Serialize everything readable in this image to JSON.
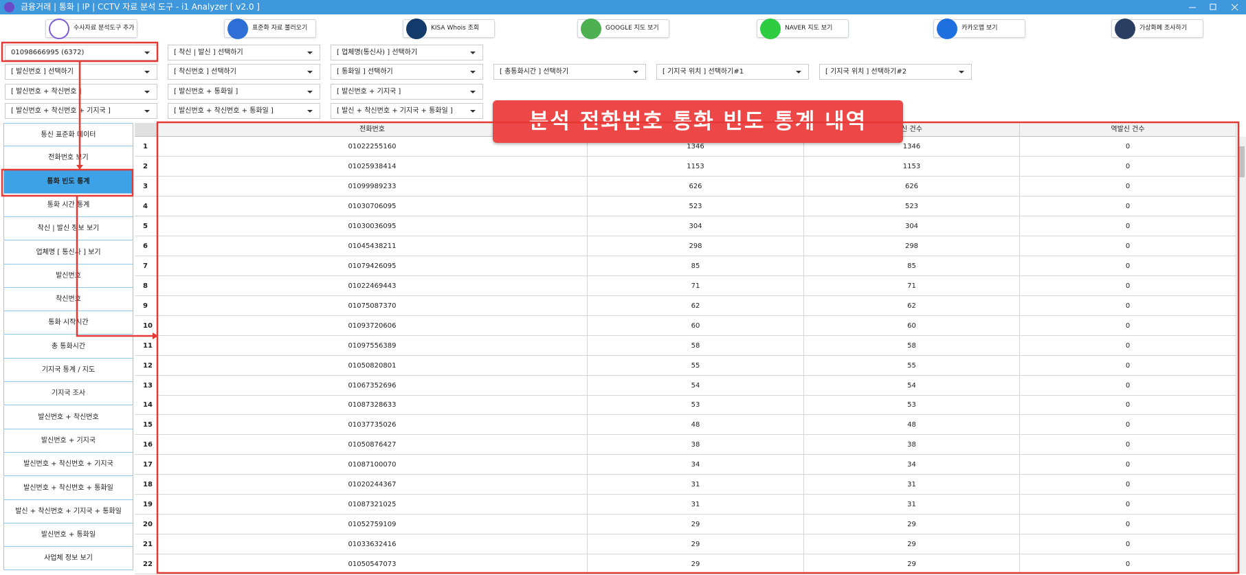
{
  "window_title": "금융거래 | 통화 | IP | CCTV 자료 분석 도구 - i1 Analyzer [ v2.0 ]",
  "toolbar": [
    "수사자료 분석도구 추가",
    "표준화 자료 불러오기",
    "KISA Whois 조회",
    "GOOGLE 지도 보기",
    "NAVER 지도 보기",
    "카카오맵 보기",
    "가상화폐 조사하기"
  ],
  "dropdowns": [
    [
      "01098666995 (6372)",
      "[ 착신 | 발신 ] 선택하기",
      "[ 업체명(통신사) ] 선택하기"
    ],
    [
      "[ 발신번호 ] 선택하기",
      "[ 착신번호 ] 선택하기",
      "[ 통화일 ] 선택하기",
      "[ 총통화시간 ] 선택하기",
      "[ 기지국 위치 ] 선택하기#1",
      "[ 기지국 위치 ] 선택하기#2"
    ],
    [
      "[ 발신번호 + 착신번호 ]",
      "[ 발신번호 + 통화일 ]",
      "[ 발신번호 + 기지국 ]"
    ],
    [
      "[ 발신번호 + 착신번호 + 기지국 ]",
      "[ 발신번호 + 착신번호 + 통화일 ]",
      "[ 발신 + 착신번호 + 기지국 + 통화일 ]"
    ]
  ],
  "sidebar": [
    "통신 표준화 데이터",
    "전화번호 보기",
    "통화 빈도 통계",
    "통화 시간 통계",
    "착신 | 발신 정보 보기",
    "업체명 [ 통신사 ] 보기",
    "발신번호",
    "착신번호",
    "통화 시작시간",
    "총 통화시간",
    "기지국 통계 / 지도",
    "기지국 조사",
    "발신번호 + 착신번호",
    "발신번호 + 기지국",
    "발신번호 + 착신번호 + 기지국",
    "발신번호 + 착신번호 + 통화일",
    "발신 + 착신번호 + 기지국 + 통화일",
    "발신번호 + 통화일",
    "사업체 정보 보기"
  ],
  "sidebar_selected": 2,
  "annotation": "분석 전화번호 통화 빈도 통계 내역",
  "table": {
    "headers": [
      "전화번호",
      null,
      "신 건수",
      "역발신 건수"
    ],
    "rows": [
      [
        1,
        "01022255160",
        1346,
        1346,
        0
      ],
      [
        2,
        "01025938414",
        1153,
        1153,
        0
      ],
      [
        3,
        "01099989233",
        626,
        626,
        0
      ],
      [
        4,
        "01030706095",
        523,
        523,
        0
      ],
      [
        5,
        "01030036095",
        304,
        304,
        0
      ],
      [
        6,
        "01045438211",
        298,
        298,
        0
      ],
      [
        7,
        "01079426095",
        85,
        85,
        0
      ],
      [
        8,
        "01022469443",
        71,
        71,
        0
      ],
      [
        9,
        "01075087370",
        62,
        62,
        0
      ],
      [
        10,
        "01093720606",
        60,
        60,
        0
      ],
      [
        11,
        "01097556389",
        58,
        58,
        0
      ],
      [
        12,
        "01050820801",
        55,
        55,
        0
      ],
      [
        13,
        "01067352696",
        54,
        54,
        0
      ],
      [
        14,
        "01087328633",
        53,
        53,
        0
      ],
      [
        15,
        "01037735026",
        48,
        48,
        0
      ],
      [
        16,
        "01050876427",
        38,
        38,
        0
      ],
      [
        17,
        "01087100070",
        34,
        34,
        0
      ],
      [
        18,
        "01020244367",
        31,
        31,
        0
      ],
      [
        19,
        "01087321025",
        31,
        31,
        0
      ],
      [
        20,
        "01052759109",
        29,
        29,
        0
      ],
      [
        21,
        "01033632416",
        29,
        29,
        0
      ],
      [
        22,
        "01050547073",
        29,
        29,
        0
      ]
    ]
  }
}
